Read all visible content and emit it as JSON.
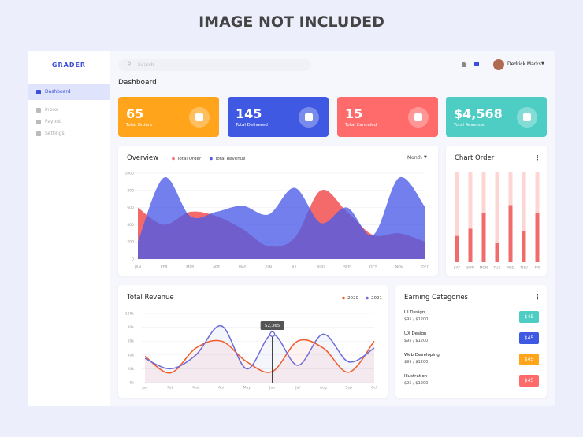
{
  "banner": "IMAGE NOT INCLUDED",
  "brand": "GRADER",
  "nav": [
    "Dashboard",
    "Inbox",
    "Payout",
    "Settings"
  ],
  "search": "Search",
  "user": "Dedrick Marks",
  "page_title": "Dashboard",
  "stats": [
    {
      "value": "65",
      "label": "Total Orders",
      "color": "#ffa41b"
    },
    {
      "value": "145",
      "label": "Total Delivered",
      "color": "#4059e3"
    },
    {
      "value": "15",
      "label": "Total Canceled",
      "color": "#ff6b6b"
    },
    {
      "value": "$4,568",
      "label": "Total Revenue",
      "color": "#4ecdc4"
    }
  ],
  "earning": {
    "title": "Earning Categories",
    "items": [
      {
        "name": "UI Design",
        "amount": "$95 / $1200",
        "badge": "$45",
        "color": "#4ecdc4"
      },
      {
        "name": "UX Design",
        "amount": "$95 / $1200",
        "badge": "$45",
        "color": "#4059e3"
      },
      {
        "name": "Web Developing",
        "amount": "$95 / $1200",
        "badge": "$45",
        "color": "#ffa41b"
      },
      {
        "name": "Illustration",
        "amount": "$95 / $1200",
        "badge": "$45",
        "color": "#ff6b6b"
      }
    ]
  },
  "chart_data": [
    {
      "type": "area",
      "title": "Overview",
      "dropdown": "Month",
      "categories": [
        "JAN",
        "FEB",
        "MAR",
        "APR",
        "MAY",
        "JUN",
        "JUL",
        "AUG",
        "SEP",
        "OCT",
        "NOV",
        "DEC"
      ],
      "series": [
        {
          "name": "Total Order",
          "color": "#f46a6a",
          "values": [
            600,
            400,
            550,
            500,
            350,
            150,
            250,
            800,
            550,
            280,
            300,
            200
          ]
        },
        {
          "name": "Total Revenue",
          "color": "#4a5be8",
          "values": [
            200,
            950,
            500,
            550,
            620,
            520,
            830,
            420,
            600,
            280,
            950,
            600
          ]
        }
      ],
      "ylim": [
        0,
        1000
      ],
      "yticks": [
        0,
        200,
        400,
        600,
        800,
        1000
      ],
      "grid": true
    },
    {
      "type": "bar",
      "title": "Chart Order",
      "categories": [
        "SAT",
        "SUN",
        "MON",
        "TUE",
        "WED",
        "THU",
        "FRI"
      ],
      "values": [
        29,
        37,
        54,
        21,
        63,
        34,
        54
      ],
      "ylim": [
        0,
        100
      ],
      "color": "#f26b6b",
      "track_color": "#fdd6d3"
    },
    {
      "type": "line",
      "title": "Total Revenue",
      "annotation": "$2,365",
      "categories": [
        "Jan",
        "Feb",
        "Mar",
        "Apr",
        "May",
        "Jun",
        "Jul",
        "Aug",
        "Sep",
        "Oct"
      ],
      "series": [
        {
          "name": "2020",
          "color": "#f05a28",
          "values": [
            38000,
            14000,
            50000,
            60000,
            30000,
            16000,
            60000,
            50000,
            15000,
            60000
          ]
        },
        {
          "name": "2021",
          "color": "#6c6cd9",
          "values": [
            35000,
            20000,
            40000,
            82000,
            20000,
            70000,
            25000,
            70000,
            30000,
            50000
          ]
        }
      ],
      "ylim": [
        0,
        100000
      ],
      "yticks": [
        {
          "value": 0,
          "label": "0k"
        },
        {
          "value": 20000,
          "label": "20k"
        },
        {
          "value": 40000,
          "label": "40k"
        },
        {
          "value": 60000,
          "label": "60k"
        },
        {
          "value": 80000,
          "label": "80k"
        },
        {
          "value": 100000,
          "label": "100k"
        }
      ],
      "grid": true
    }
  ]
}
